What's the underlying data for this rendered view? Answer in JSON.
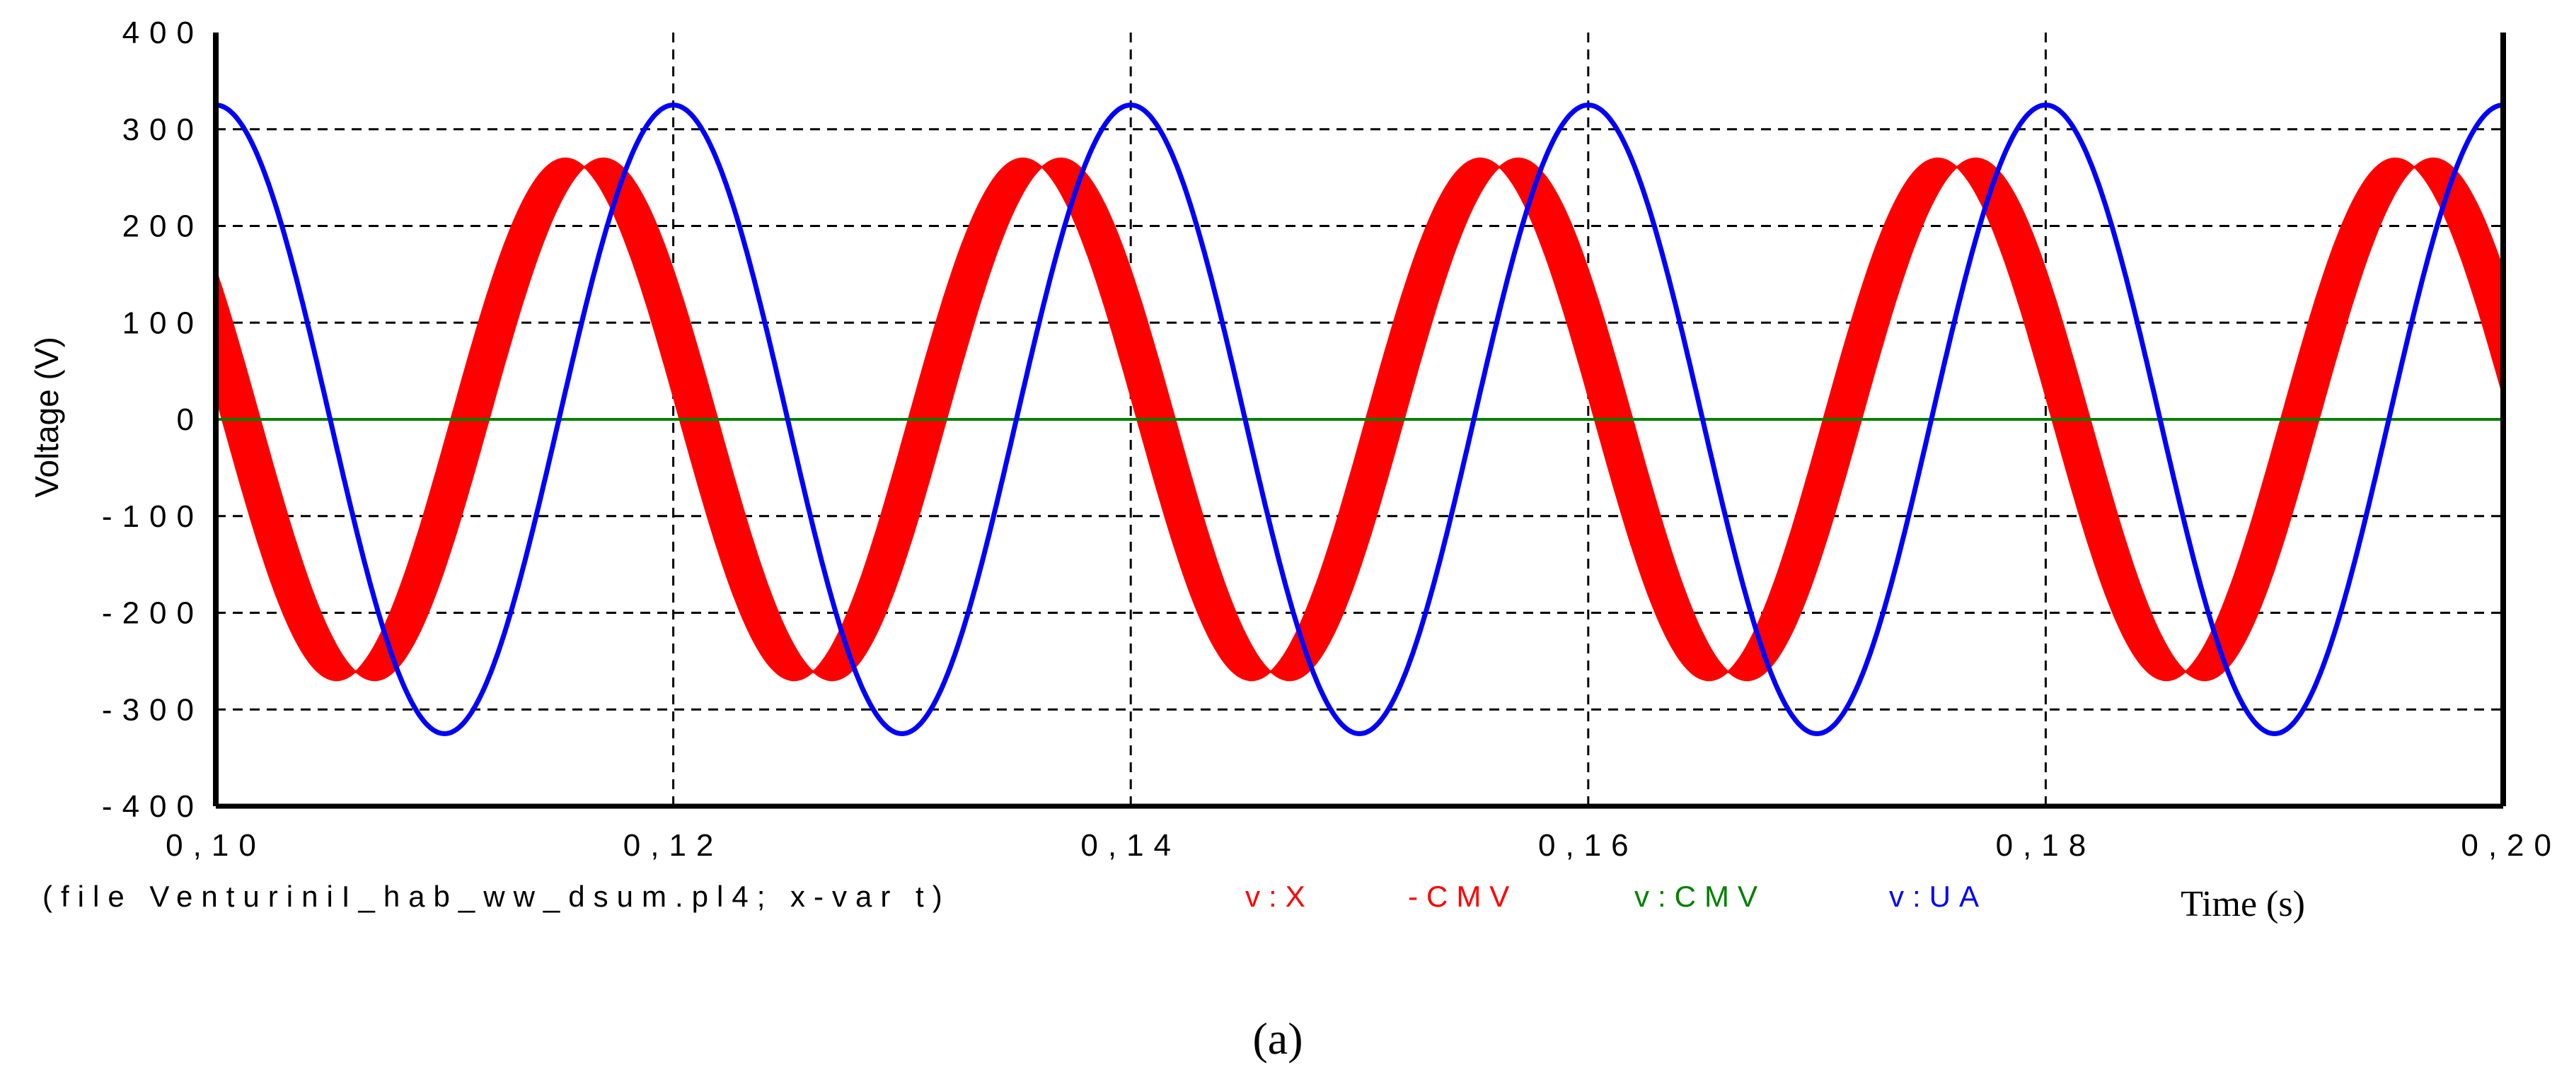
{
  "chart_data": {
    "type": "line",
    "title": "",
    "xlabel": "Time (s)",
    "ylabel": "Voltage (V)",
    "xlim": [
      0.1,
      0.2
    ],
    "ylim": [
      -400,
      400
    ],
    "x_ticks": [
      0.1,
      0.12,
      0.14,
      0.16,
      0.18,
      0.2
    ],
    "x_tick_labels": [
      "0,10",
      "0,12",
      "0,14",
      "0,16",
      "0,18",
      "0,20"
    ],
    "y_ticks": [
      400,
      300,
      200,
      100,
      0,
      -100,
      -200,
      -300,
      -400
    ],
    "y_tick_labels": [
      "400",
      "300",
      "200",
      "100",
      "0",
      "-100",
      "-200",
      "-300",
      "-400"
    ],
    "grid": true,
    "legend_position": "bottom",
    "file_label": "(file VenturiniI_hab_ww_dsum.pl4; x-var t)",
    "series": [
      {
        "name": "v:X -CMV",
        "color": "#ff0000",
        "style": "pwm-envelope",
        "frequency_hz": 50,
        "peak": 270,
        "upper_phase_deg": 175,
        "lower_phase_deg": 145
      },
      {
        "name": "v:CMV",
        "color": "#008000",
        "style": "line",
        "constant": 0
      },
      {
        "name": "v:UA",
        "color": "#0000ff",
        "style": "sine",
        "frequency_hz": 50,
        "amplitude": 325,
        "phase_deg": 90
      }
    ]
  },
  "legend": {
    "file": "(file VenturiniI_hab_ww_dsum.pl4; x-var t)",
    "s1": "v:X",
    "s1b": "-CMV",
    "s2": "v:CMV",
    "s3": "v:UA",
    "time": "Time (s)"
  },
  "caption": "(a)"
}
